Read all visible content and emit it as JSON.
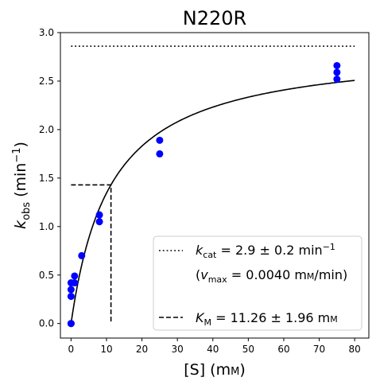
{
  "chart_data": {
    "type": "scatter",
    "title": "N220R",
    "xlabel": "[S] (mM)",
    "ylabel": "k_obs (min^-1)",
    "xlim": [
      -3,
      84
    ],
    "ylim": [
      -0.15,
      3.0
    ],
    "x_ticks": [
      0,
      10,
      20,
      30,
      40,
      50,
      60,
      70,
      80
    ],
    "y_ticks": [
      0.0,
      0.5,
      1.0,
      1.5,
      2.0,
      2.5,
      3.0
    ],
    "grid": false,
    "legend_position": "lower-right",
    "colors": {
      "points": "#0000ff",
      "lines": "#000000"
    },
    "series": [
      {
        "type": "scatter",
        "points": [
          {
            "x": 0,
            "y": 0.0
          },
          {
            "x": 0,
            "y": 0.0
          },
          {
            "x": 0,
            "y": 0.28
          },
          {
            "x": 0,
            "y": 0.35
          },
          {
            "x": 0,
            "y": 0.42
          },
          {
            "x": 1,
            "y": 0.42
          },
          {
            "x": 1,
            "y": 0.49
          },
          {
            "x": 3,
            "y": 0.7
          },
          {
            "x": 8,
            "y": 1.05
          },
          {
            "x": 8,
            "y": 1.12
          },
          {
            "x": 25,
            "y": 1.75
          },
          {
            "x": 25,
            "y": 1.89
          },
          {
            "x": 75,
            "y": 2.52
          },
          {
            "x": 75,
            "y": 2.59
          },
          {
            "x": 75,
            "y": 2.66
          }
        ]
      },
      {
        "type": "line",
        "style": "solid",
        "model": "michaelis-menten",
        "kcat": 2.86,
        "km": 11.26,
        "x_range": [
          0,
          80
        ]
      },
      {
        "type": "line",
        "style": "dotted",
        "x": [
          0,
          80
        ],
        "y": [
          2.86,
          2.86
        ]
      },
      {
        "type": "line",
        "style": "dashed",
        "x": [
          0,
          11.26,
          11.26
        ],
        "y": [
          1.43,
          1.43,
          0
        ]
      }
    ],
    "legend": {
      "kcat": "k_cat = 2.9 ± 0.2 min^-1",
      "vmax": "(v_max = 0.0040 mM/min)",
      "km": "K_M = 11.26 ± 1.96 mM"
    }
  }
}
